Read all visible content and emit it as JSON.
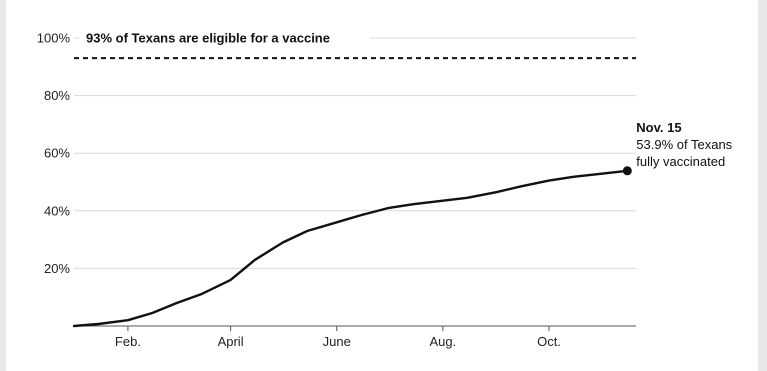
{
  "chart_data": {
    "type": "line",
    "title": "",
    "xlabel": "",
    "ylabel": "",
    "ylim": [
      0,
      100
    ],
    "y_ticks": [
      {
        "value": 20,
        "label": "20%"
      },
      {
        "value": 40,
        "label": "40%"
      },
      {
        "value": 60,
        "label": "60%"
      },
      {
        "value": 80,
        "label": "80%"
      },
      {
        "value": 100,
        "label": "100%"
      }
    ],
    "x_ticks": [
      {
        "date": "2021-02-01",
        "label": "Feb."
      },
      {
        "date": "2021-04-01",
        "label": "April"
      },
      {
        "date": "2021-06-01",
        "label": "June"
      },
      {
        "date": "2021-08-01",
        "label": "Aug."
      },
      {
        "date": "2021-10-01",
        "label": "Oct."
      }
    ],
    "xlim": [
      "2021-01-01",
      "2021-11-20"
    ],
    "grid": true,
    "series": [
      {
        "x": [
          "2021-01-01",
          "2021-01-15",
          "2021-02-01",
          "2021-02-15",
          "2021-03-01",
          "2021-03-15",
          "2021-04-01",
          "2021-04-15",
          "2021-05-01",
          "2021-05-15",
          "2021-06-01",
          "2021-06-15",
          "2021-07-01",
          "2021-07-15",
          "2021-08-01",
          "2021-08-15",
          "2021-09-01",
          "2021-09-15",
          "2021-10-01",
          "2021-10-15",
          "2021-11-01",
          "2021-11-15"
        ],
        "values": [
          0,
          0.7,
          2,
          4.5,
          8,
          11,
          16,
          23,
          29,
          33,
          36,
          38.5,
          41,
          42.3,
          43.5,
          44.5,
          46.5,
          48.5,
          50.5,
          51.8,
          52.9,
          53.9
        ]
      }
    ],
    "reference_line": {
      "value": 93,
      "label": "93% of Texans are eligible for a vaccine",
      "style": "dashed"
    },
    "endpoint_annotation": {
      "title": "Nov. 15",
      "line1": "53.9% of Texans",
      "line2": "fully vaccinated"
    },
    "colors": {
      "line": "#111111",
      "grid": "#d9d9d9",
      "axis": "#555555"
    }
  }
}
